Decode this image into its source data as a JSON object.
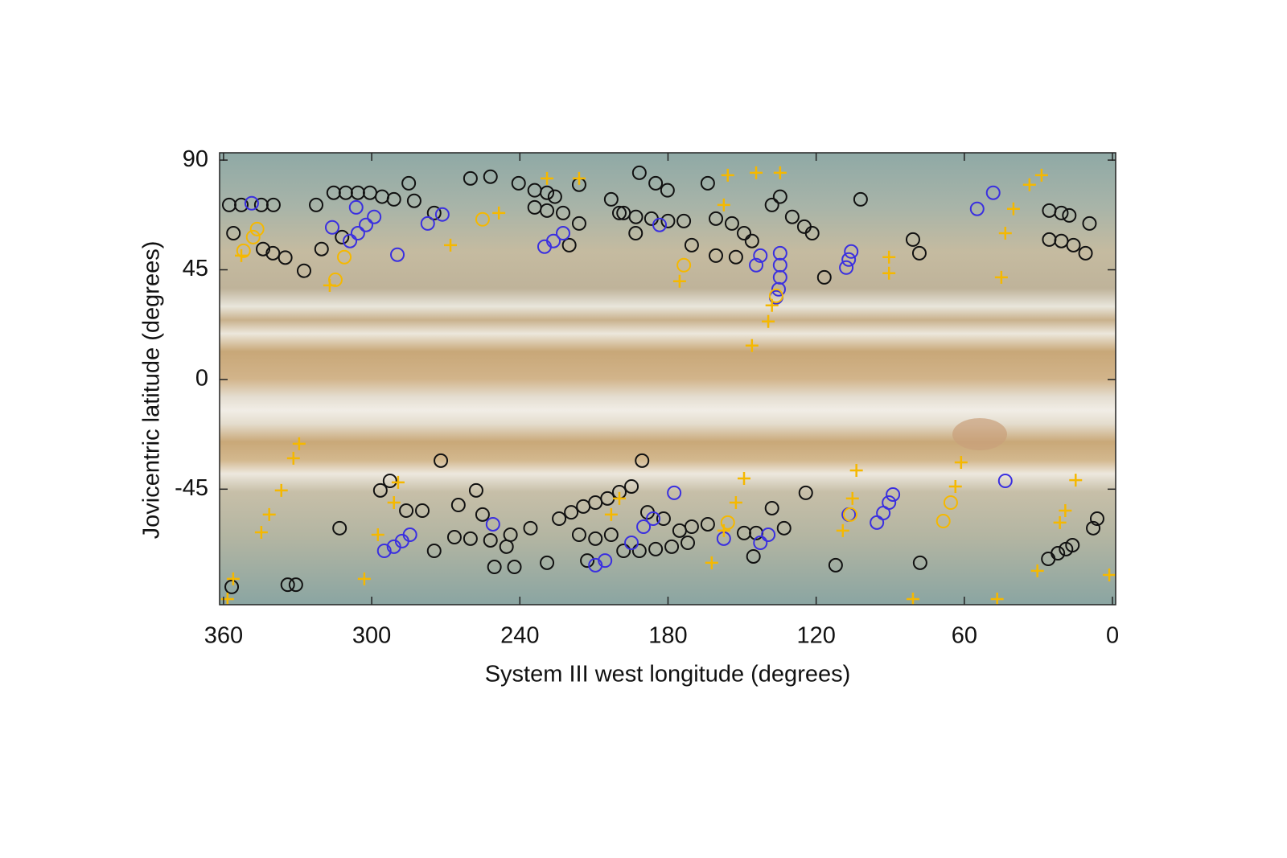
{
  "chart_data": {
    "type": "scatter",
    "x_label": "System III west longitude (degrees)",
    "y_label": "Jovicentric latitude (degrees)",
    "xlim": [
      361.6,
      -1.3
    ],
    "ylim": [
      -92.4,
      93
    ],
    "xticks": [
      360,
      300,
      240,
      180,
      120,
      60,
      0
    ],
    "yticks": [
      90,
      45,
      0,
      -45
    ],
    "series": [
      {
        "color": "#111111",
        "marker": "circle",
        "x": [
          357.7,
          352.8,
          356,
          344.7,
          339.8,
          344,
          340,
          335,
          327.4,
          322.5,
          315.4,
          310.5,
          305.6,
          300.7,
          295.8,
          291,
          285,
          282.8,
          274.7,
          320.3,
          312,
          260,
          251.9,
          240.5,
          234,
          229,
          225.8,
          234,
          229,
          222.5,
          216,
          220,
          216,
          203,
          198,
          193,
          186.7,
          180,
          191.6,
          185,
          180.2,
          199.7,
          193.1,
          173.6,
          170.4,
          163.9,
          160.6,
          154.1,
          149.2,
          160.6,
          152.5,
          146,
          137.9,
          134.6,
          129.7,
          124.8,
          121.6,
          116.7,
          102,
          80.8,
          78.2,
          25.6,
          20.7,
          17.5,
          25.6,
          20.7,
          15.8,
          10.9,
          9.3,
          272,
          296.5,
          292.6,
          313,
          286,
          279.5,
          274.7,
          264.9,
          257.7,
          255.1,
          251.9,
          260,
          266.5,
          250.3,
          242.2,
          243.8,
          235.7,
          245.4,
          229,
          224.1,
          219.2,
          214.3,
          209.4,
          204.5,
          199.7,
          194.8,
          190.5,
          216,
          209.4,
          203,
          212.7,
          198,
          191.6,
          185,
          178.5,
          172,
          188.3,
          181.8,
          175.3,
          170.4,
          163.9,
          149.2,
          144.3,
          137.9,
          133,
          145.4,
          124.2,
          112.1,
          77.9,
          26,
          22.1,
          18.8,
          16.2,
          7.8,
          6.2,
          356.7,
          334,
          330.7
        ],
        "values": [
          71.6,
          71.6,
          60,
          71.6,
          71.6,
          53.5,
          51.8,
          50,
          44.6,
          71.6,
          76.6,
          76.6,
          76.6,
          76.6,
          75,
          73.9,
          80.5,
          73.3,
          68.3,
          53.5,
          58.4,
          82.5,
          83.2,
          80.5,
          77.6,
          76.6,
          75,
          70.6,
          69.3,
          68.3,
          64,
          55.1,
          79.9,
          73.9,
          68.3,
          66.7,
          66,
          65,
          84.8,
          80.5,
          77.6,
          68.3,
          60,
          65,
          55.1,
          80.5,
          66,
          64,
          60,
          50.8,
          50.2,
          56.8,
          71.6,
          75,
          66.7,
          62.7,
          60,
          41.9,
          73.9,
          57.4,
          51.8,
          69.3,
          68.3,
          67.3,
          57.4,
          56.8,
          55.1,
          51.8,
          64,
          -33.3,
          -45.5,
          -41.6,
          -61,
          -53.8,
          -53.8,
          -70.3,
          -51.5,
          -45.5,
          -55.4,
          -66,
          -65.3,
          -64.7,
          -76.9,
          -76.9,
          -63.7,
          -61,
          -68.6,
          -75.2,
          -57.1,
          -54.5,
          -52.1,
          -50.5,
          -48.8,
          -46.2,
          -43.9,
          -33.3,
          -63.7,
          -65.3,
          -63.7,
          -74.3,
          -70.3,
          -70.3,
          -69.6,
          -68.6,
          -67,
          -54.5,
          -57.1,
          -62,
          -60.4,
          -59.4,
          -63,
          -63,
          -52.8,
          -61,
          -72.6,
          -46.5,
          -76.2,
          -75.2,
          -73.6,
          -71.3,
          -69.6,
          -68,
          -61,
          -57.1,
          -85.1,
          -84.2,
          -84.2
        ]
      },
      {
        "color": "#3a2fe0",
        "marker": "circle",
        "x": [
          348.6,
          316,
          308.8,
          305.6,
          302.3,
          299,
          306.3,
          289.6,
          277.3,
          271.4,
          230,
          226.4,
          222.5,
          183.4,
          144.3,
          142.6,
          134.6,
          134.6,
          134.6,
          135.2,
          136.2,
          107.8,
          106.8,
          105.8,
          54.8,
          48.3,
          43.4,
          294.9,
          291,
          287.7,
          284.5,
          250.9,
          209.4,
          205.5,
          194.8,
          189.9,
          186,
          177.5,
          157.4,
          142.6,
          139.4,
          106.8,
          95.4,
          92.8,
          90.5,
          88.9
        ],
        "values": [
          72.3,
          62.4,
          56.8,
          60,
          63.4,
          66.7,
          70.6,
          51.2,
          64,
          67.7,
          54.5,
          56.8,
          60,
          63.4,
          46.9,
          50.8,
          51.8,
          46.9,
          41.9,
          37,
          33.7,
          45.9,
          49.2,
          52.5,
          70,
          76.6,
          -41.6,
          -70.3,
          -68.6,
          -66.3,
          -63.7,
          -59.4,
          -76.2,
          -74.3,
          -67,
          -60.4,
          -57.1,
          -46.5,
          -65.3,
          -67,
          -63.7,
          -55.4,
          -58.7,
          -54.8,
          -50.5,
          -47.2
        ]
      },
      {
        "color": "#f5b800",
        "marker": "circle",
        "x": [
          351.9,
          348,
          346.4,
          314.7,
          311.1,
          255.1,
          173.6,
          155.8,
          136.2,
          106.2,
          68.5,
          65.5
        ],
        "values": [
          52.8,
          58.4,
          61.7,
          40.9,
          50.2,
          65.7,
          46.9,
          -58.7,
          34.3,
          -55.4,
          -58.1,
          -50.5
        ]
      },
      {
        "color": "#f5b800",
        "marker": "plus",
        "x": [
          352.8,
          317,
          268.1,
          248.5,
          229,
          216,
          155.8,
          144.3,
          134.6,
          157.4,
          175.3,
          146,
          139.4,
          137.9,
          90.5,
          90.5,
          45,
          43.4,
          40.1,
          33.6,
          28.7,
          329.4,
          331.7,
          336.6,
          341.5,
          344.7,
          356.1,
          358.4,
          303,
          289.3,
          291,
          297.5,
          203,
          199.7,
          149.2,
          152.5,
          157.4,
          162.3,
          103.7,
          105.3,
          109.2,
          80.8,
          61.3,
          63.6,
          46.7,
          30.4,
          21.3,
          19.1,
          14.9,
          1.3
        ],
        "values": [
          50.8,
          38.6,
          55.1,
          68.3,
          82.5,
          82.5,
          83.8,
          84.8,
          84.8,
          71.6,
          40.3,
          13.9,
          23.8,
          30.4,
          50.2,
          43.6,
          41.9,
          60,
          70,
          79.9,
          83.8,
          -26.4,
          -32.3,
          -45.5,
          -55.4,
          -62.7,
          -81.8,
          -90.1,
          -81.8,
          -42.2,
          -50.5,
          -63.7,
          -55.4,
          -48.8,
          -40.6,
          -50.5,
          -62,
          -75.2,
          -37.3,
          -48.8,
          -62,
          -90.1,
          -34,
          -43.9,
          -90.1,
          -78.5,
          -58.7,
          -53.8,
          -41.3,
          -80.2
        ]
      }
    ]
  }
}
